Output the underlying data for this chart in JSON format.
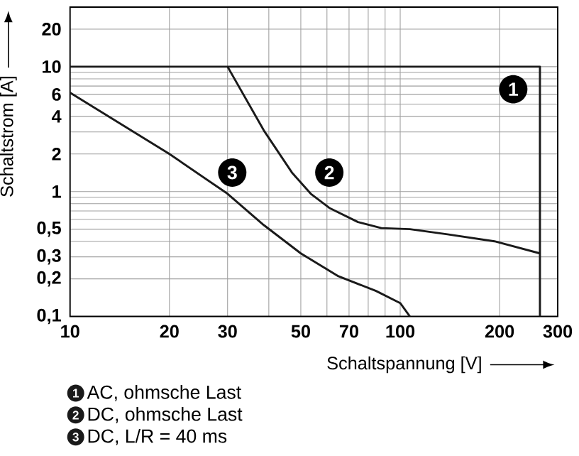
{
  "chart_data": {
    "type": "line",
    "xlabel": "Schaltspannung [V]",
    "ylabel": "Schaltstrom [A]",
    "log": "xy",
    "grid": true,
    "legend": "bottom left",
    "marker": "none",
    "line_style": "solid",
    "xlim": [
      10,
      300
    ],
    "ylim": [
      0.1,
      30
    ],
    "xticks": [
      10,
      20,
      30,
      {
        "value": 40,
        "label": null
      },
      50,
      {
        "value": 60,
        "label": null
      },
      70,
      {
        "value": 80,
        "label": null
      },
      {
        "value": 90,
        "label": null
      },
      100,
      200,
      300
    ],
    "yticks": [
      {
        "value": 0.1,
        "label": "0,1"
      },
      {
        "value": 0.2,
        "label": "0,2"
      },
      {
        "value": 0.3,
        "label": "0,3"
      },
      {
        "value": 0.4,
        "label": null
      },
      {
        "value": 0.5,
        "label": "0,5"
      },
      {
        "value": 0.6,
        "label": null
      },
      {
        "value": 0.7,
        "label": null
      },
      {
        "value": 0.8,
        "label": null
      },
      {
        "value": 0.9,
        "label": null
      },
      1,
      2,
      {
        "value": 3,
        "label": null
      },
      4,
      {
        "value": 5,
        "label": null
      },
      6,
      {
        "value": 7,
        "label": null
      },
      {
        "value": 8,
        "label": null
      },
      {
        "value": 9,
        "label": null
      },
      10,
      20
    ],
    "series": [
      {
        "name": "AC, ohmsche Last",
        "color": "#1a1a1a",
        "x": [
          10,
          265,
          265
        ],
        "values": [
          10,
          10,
          0.1
        ]
      },
      {
        "name": "DC, ohmsche Last",
        "color": "#1a1a1a",
        "x": [
          30,
          38.6,
          47,
          53.6,
          61,
          74.5,
          87.7,
          107,
          139,
          193,
          265
        ],
        "values": [
          10,
          3.1,
          1.42,
          0.96,
          0.74,
          0.57,
          0.51,
          0.5,
          0.455,
          0.4,
          0.32
        ]
      },
      {
        "name": "DC, L/R = 40 ms",
        "color": "#1a1a1a",
        "x": [
          10,
          20,
          30,
          38.6,
          50,
          65,
          84.5,
          100,
          107
        ],
        "values": [
          6.2,
          2.0,
          0.96,
          0.54,
          0.32,
          0.21,
          0.16,
          0.128,
          0.1
        ]
      }
    ],
    "annotations": [
      {
        "text": "1",
        "x": 220,
        "y": 6.6
      },
      {
        "text": "2",
        "x": 61,
        "y": 1.42
      },
      {
        "text": "3",
        "x": 31,
        "y": 1.42
      }
    ]
  }
}
